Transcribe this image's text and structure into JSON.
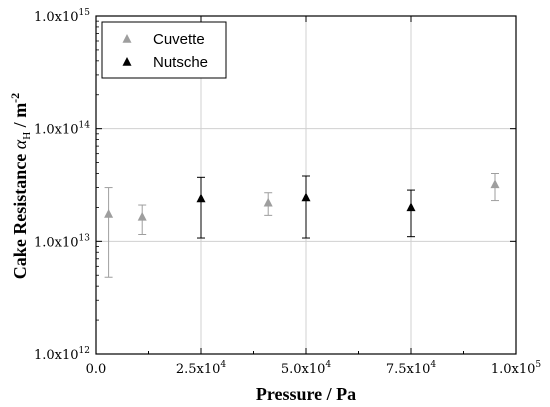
{
  "chart_data": {
    "type": "scatter",
    "title": "",
    "xlabel": "Pressure / Pa",
    "ylabel": {
      "prefix": "Cake Resistance ",
      "symbol": "α",
      "symbol_sub": "H",
      "unit": " / m",
      "unit_sup": "-2"
    },
    "x_scale": "linear",
    "y_scale": "log",
    "xlim": [
      0,
      100000
    ],
    "ylim": [
      1000000000000.0,
      1000000000000000.0
    ],
    "grid": true,
    "legend_position": "top-left",
    "x_ticks": [
      {
        "value": 0,
        "text": "0.0",
        "sup": ""
      },
      {
        "value": 25000,
        "text": "2.5x10",
        "sup": "4"
      },
      {
        "value": 50000,
        "text": "5.0x10",
        "sup": "4"
      },
      {
        "value": 75000,
        "text": "7.5x10",
        "sup": "4"
      },
      {
        "value": 100000,
        "text": "1.0x10",
        "sup": "5"
      }
    ],
    "y_ticks": [
      {
        "value": 1000000000000.0,
        "text": "1.0x10",
        "sup": "12"
      },
      {
        "value": 10000000000000.0,
        "text": "1.0x10",
        "sup": "13"
      },
      {
        "value": 100000000000000.0,
        "text": "1.0x10",
        "sup": "14"
      },
      {
        "value": 1000000000000000.0,
        "text": "1.0x10",
        "sup": "15"
      }
    ],
    "series": [
      {
        "name": "Cuvette",
        "color": "#9e9e9e",
        "marker": "triangle-up",
        "points": [
          {
            "x": 3000,
            "y": 17500000000000.0,
            "err_low": 4800000000000.0,
            "err_high": 30000000000000.0
          },
          {
            "x": 11000,
            "y": 16500000000000.0,
            "err_low": 11500000000000.0,
            "err_high": 21000000000000.0
          },
          {
            "x": 41000,
            "y": 22000000000000.0,
            "err_low": 17000000000000.0,
            "err_high": 27000000000000.0
          },
          {
            "x": 95000,
            "y": 32000000000000.0,
            "err_low": 23000000000000.0,
            "err_high": 40000000000000.0
          }
        ]
      },
      {
        "name": "Nutsche",
        "color": "#000000",
        "marker": "triangle-up",
        "points": [
          {
            "x": 25000,
            "y": 24000000000000.0,
            "err_low": 10700000000000.0,
            "err_high": 37000000000000.0
          },
          {
            "x": 50000,
            "y": 24500000000000.0,
            "err_low": 10700000000000.0,
            "err_high": 38000000000000.0
          },
          {
            "x": 75000,
            "y": 20000000000000.0,
            "err_low": 11000000000000.0,
            "err_high": 28500000000000.0
          }
        ]
      }
    ]
  }
}
